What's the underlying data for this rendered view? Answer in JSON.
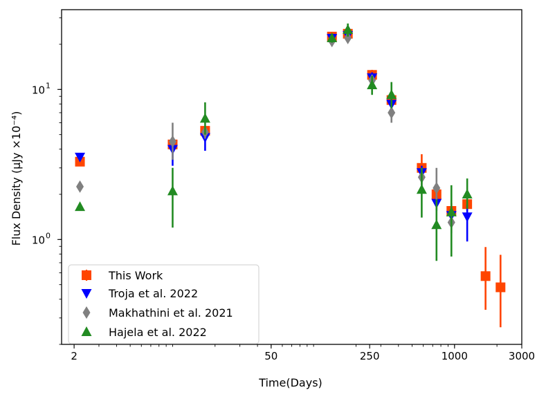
{
  "chart_data": {
    "type": "scatter",
    "xscale": "log",
    "yscale": "log",
    "xlim": [
      1.63,
      3000
    ],
    "ylim": [
      0.2,
      34
    ],
    "xlabel": "Time(Days)",
    "ylabel": "Flux Density (μJy ×10⁻⁴)",
    "x_ticks": [
      {
        "value": 2,
        "label": "2"
      },
      {
        "value": 50,
        "label": "50"
      },
      {
        "value": 250,
        "label": "250"
      },
      {
        "value": 1000,
        "label": "1000"
      },
      {
        "value": 3000,
        "label": "3000"
      }
    ],
    "y_ticks": [
      {
        "value": 1,
        "label": "10",
        "exp": "0"
      },
      {
        "value": 10,
        "label": "10",
        "exp": "1"
      }
    ],
    "legend": {
      "position": "lower-left"
    },
    "series": [
      {
        "name": "This Work",
        "marker": "square",
        "color": "#ff4500",
        "points": [
          {
            "x": 2.2,
            "y": 3.3,
            "lo": 3.3,
            "hi": 3.3
          },
          {
            "x": 10,
            "y": 4.3,
            "lo": 4.1,
            "hi": 4.6
          },
          {
            "x": 17,
            "y": 5.3,
            "lo": 5.0,
            "hi": 5.6
          },
          {
            "x": 135,
            "y": 22.5,
            "lo": 21.5,
            "hi": 24.0
          },
          {
            "x": 175,
            "y": 23.5,
            "lo": 22.5,
            "hi": 25.0
          },
          {
            "x": 260,
            "y": 12.5,
            "lo": 11.5,
            "hi": 13.5
          },
          {
            "x": 357,
            "y": 8.5,
            "lo": 8.0,
            "hi": 9.2
          },
          {
            "x": 585,
            "y": 3.0,
            "lo": 2.5,
            "hi": 3.7
          },
          {
            "x": 745,
            "y": 2.0,
            "lo": 1.7,
            "hi": 2.3
          },
          {
            "x": 950,
            "y": 1.55,
            "lo": 1.35,
            "hi": 1.75
          },
          {
            "x": 1230,
            "y": 1.72,
            "lo": 1.55,
            "hi": 1.9
          },
          {
            "x": 1660,
            "y": 0.57,
            "lo": 0.34,
            "hi": 0.89
          },
          {
            "x": 2120,
            "y": 0.48,
            "lo": 0.26,
            "hi": 0.79
          }
        ]
      },
      {
        "name": "Troja et al. 2022",
        "marker": "triangle-down",
        "color": "#0000ff",
        "points": [
          {
            "x": 2.2,
            "y": 3.55,
            "lo": 3.55,
            "hi": 3.55
          },
          {
            "x": 10,
            "y": 4.0,
            "lo": 3.1,
            "hi": 4.6
          },
          {
            "x": 17,
            "y": 4.8,
            "lo": 3.9,
            "hi": 5.5
          },
          {
            "x": 135,
            "y": 22.0,
            "lo": 21.0,
            "hi": 23.0
          },
          {
            "x": 175,
            "y": 23.0,
            "lo": 22.0,
            "hi": 24.0
          },
          {
            "x": 260,
            "y": 12.0,
            "lo": 11.0,
            "hi": 13.0
          },
          {
            "x": 357,
            "y": 8.0,
            "lo": 7.5,
            "hi": 8.6
          },
          {
            "x": 585,
            "y": 2.8,
            "lo": 2.5,
            "hi": 3.1
          },
          {
            "x": 745,
            "y": 1.75,
            "lo": 1.55,
            "hi": 1.95
          },
          {
            "x": 950,
            "y": 1.45,
            "lo": 1.3,
            "hi": 1.65
          },
          {
            "x": 1230,
            "y": 1.42,
            "lo": 0.97,
            "hi": 1.7
          }
        ]
      },
      {
        "name": "Makhathini et al. 2021",
        "marker": "diamond",
        "color": "#808080",
        "points": [
          {
            "x": 2.2,
            "y": 2.25,
            "lo": 2.25,
            "hi": 2.25
          },
          {
            "x": 10,
            "y": 4.5,
            "lo": 3.4,
            "hi": 6.0
          },
          {
            "x": 17,
            "y": 5.2,
            "lo": 4.7,
            "hi": 5.7
          },
          {
            "x": 135,
            "y": 21.0,
            "lo": 20.0,
            "hi": 22.0
          },
          {
            "x": 175,
            "y": 22.0,
            "lo": 21.0,
            "hi": 23.0
          },
          {
            "x": 260,
            "y": 11.5,
            "lo": 10.5,
            "hi": 12.5
          },
          {
            "x": 357,
            "y": 7.0,
            "lo": 6.0,
            "hi": 8.0
          },
          {
            "x": 585,
            "y": 2.6,
            "lo": 2.2,
            "hi": 3.0
          },
          {
            "x": 745,
            "y": 2.2,
            "lo": 1.6,
            "hi": 3.0
          },
          {
            "x": 950,
            "y": 1.3,
            "lo": 1.1,
            "hi": 1.5
          }
        ]
      },
      {
        "name": "Hajela et al. 2022",
        "marker": "triangle-up",
        "color": "#228b22",
        "points": [
          {
            "x": 2.2,
            "y": 1.65,
            "lo": 1.65,
            "hi": 1.65
          },
          {
            "x": 10,
            "y": 2.1,
            "lo": 1.2,
            "hi": 3.0
          },
          {
            "x": 17,
            "y": 6.4,
            "lo": 5.0,
            "hi": 8.2
          },
          {
            "x": 135,
            "y": 22.0,
            "lo": 20.5,
            "hi": 23.5
          },
          {
            "x": 175,
            "y": 25.0,
            "lo": 22.5,
            "hi": 27.5
          },
          {
            "x": 260,
            "y": 10.7,
            "lo": 9.2,
            "hi": 12.3
          },
          {
            "x": 357,
            "y": 9.2,
            "lo": 7.5,
            "hi": 11.2
          },
          {
            "x": 585,
            "y": 2.15,
            "lo": 1.4,
            "hi": 3.0
          },
          {
            "x": 745,
            "y": 1.25,
            "lo": 0.72,
            "hi": 1.85
          },
          {
            "x": 950,
            "y": 1.52,
            "lo": 0.77,
            "hi": 2.3
          },
          {
            "x": 1230,
            "y": 2.0,
            "lo": 1.6,
            "hi": 2.55
          }
        ]
      }
    ]
  }
}
